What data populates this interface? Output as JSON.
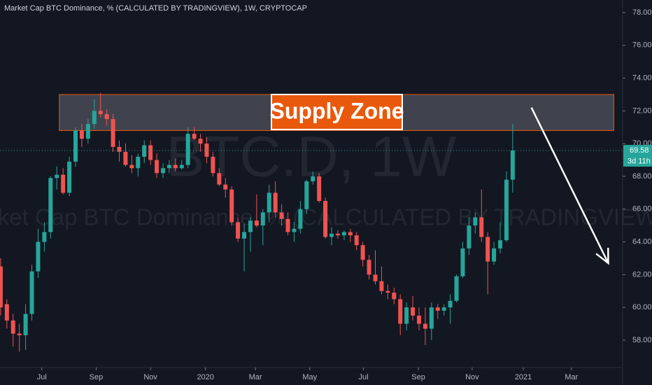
{
  "chart_data": {
    "type": "candlestick",
    "title": "Market Cap BTC Dominance, % (CALCULATED BY TRADINGVIEW), 1W, CRYPTOCAP",
    "watermark": "BTC.D, 1W",
    "watermark_subtitle": "Market Cap BTC Dominance, % (CALCULATED BY TRADINGVIEW)",
    "countdown": "3d 11h",
    "up_color": "#26a69a",
    "down_color": "#ef5350",
    "x": [
      0,
      1,
      2,
      3,
      4,
      5,
      6,
      7,
      8,
      9,
      10,
      11,
      12,
      13,
      14,
      15,
      16,
      17,
      18,
      19,
      20,
      21,
      22,
      23,
      24,
      25,
      26,
      27,
      28,
      29,
      30,
      31,
      32,
      33,
      34,
      35,
      36,
      37,
      38,
      39,
      40,
      41,
      42,
      43,
      44,
      45,
      46,
      47,
      48,
      49,
      50,
      51,
      52,
      53,
      54,
      55,
      56,
      57,
      58,
      59,
      60,
      61,
      62,
      63,
      64,
      65,
      66,
      67,
      68,
      69,
      70,
      71,
      72,
      73,
      74,
      75,
      76,
      77,
      78,
      79,
      80,
      81,
      82
    ],
    "open": [
      62.5,
      60.2,
      59.2,
      58.4,
      58.3,
      59.6,
      62.2,
      64.0,
      64.6,
      67.9,
      68.1,
      67.0,
      68.9,
      70.8,
      70.3,
      71.2,
      72.0,
      71.8,
      71.5,
      69.8,
      69.5,
      68.7,
      68.5,
      69.2,
      69.9,
      69.0,
      68.2,
      68.5,
      68.7,
      68.5,
      68.7,
      70.6,
      70.3,
      70.0,
      69.2,
      68.2,
      67.5,
      67.2,
      65.2,
      64.2,
      64.6,
      65.3,
      65.0,
      65.8,
      67.0,
      65.8,
      65.4,
      64.6,
      64.8,
      66.0,
      67.7,
      68.0,
      66.5,
      64.3,
      64.5,
      64.4,
      64.6,
      64.4,
      63.8,
      62.9,
      62.0,
      61.6,
      61.0,
      60.9,
      60.5,
      59.0,
      60.0,
      59.5,
      59.0,
      58.7,
      60.0,
      59.8,
      60.0,
      60.4,
      61.9,
      63.6,
      65.0,
      65.5,
      64.3,
      62.8,
      63.6,
      64.1,
      67.8
    ],
    "high": [
      63.0,
      60.5,
      59.6,
      59.0,
      60.2,
      62.6,
      64.8,
      65.2,
      68.0,
      68.6,
      68.5,
      69.2,
      71.0,
      71.2,
      71.5,
      72.7,
      73.1,
      72.1,
      71.8,
      70.2,
      70.0,
      69.3,
      69.4,
      70.2,
      70.2,
      69.4,
      68.8,
      69.0,
      69.1,
      69.0,
      71.0,
      71.0,
      70.6,
      70.4,
      69.5,
      68.5,
      67.9,
      67.4,
      65.5,
      65.1,
      65.5,
      66.9,
      66.0,
      67.5,
      67.7,
      66.3,
      65.8,
      65.2,
      66.5,
      67.8,
      68.3,
      68.2,
      66.7,
      64.9,
      64.7,
      64.7,
      64.8,
      64.6,
      64.0,
      63.2,
      63.5,
      62.5,
      61.4,
      61.2,
      60.8,
      60.3,
      60.7,
      60.0,
      60.0,
      60.3,
      60.2,
      60.2,
      60.8,
      62.0,
      64.0,
      65.5,
      65.8,
      67.2,
      64.6,
      64.0,
      65.2,
      68.3,
      71.2
    ],
    "low": [
      59.5,
      58.7,
      57.6,
      57.3,
      57.4,
      59.2,
      61.8,
      63.4,
      64.2,
      67.2,
      66.9,
      66.8,
      68.6,
      69.8,
      70.0,
      70.9,
      71.6,
      71.1,
      69.5,
      68.9,
      68.6,
      68.2,
      68.0,
      68.8,
      68.7,
      67.9,
      67.9,
      68.2,
      68.3,
      68.4,
      68.5,
      70.2,
      69.5,
      68.8,
      68.0,
      67.4,
      66.7,
      65.0,
      64.0,
      62.2,
      63.4,
      64.9,
      63.8,
      65.2,
      65.5,
      65.0,
      64.4,
      64.0,
      64.5,
      65.7,
      67.5,
      66.4,
      64.2,
      63.8,
      64.2,
      64.1,
      64.0,
      63.5,
      62.5,
      61.7,
      61.4,
      60.8,
      60.5,
      60.2,
      58.3,
      58.6,
      59.2,
      58.6,
      57.7,
      58.0,
      59.3,
      59.5,
      59.0,
      60.3,
      61.8,
      63.2,
      64.5,
      64.0,
      60.8,
      62.6,
      63.3,
      64.0,
      67.0
    ],
    "close": [
      60.0,
      59.2,
      58.4,
      58.3,
      59.6,
      62.2,
      64.0,
      64.6,
      67.9,
      68.1,
      67.0,
      68.9,
      70.8,
      70.3,
      71.2,
      72.0,
      71.8,
      71.5,
      69.8,
      69.5,
      68.7,
      68.5,
      69.2,
      69.9,
      69.0,
      68.2,
      68.5,
      68.7,
      68.5,
      68.7,
      70.6,
      70.3,
      70.0,
      69.2,
      68.2,
      67.5,
      67.2,
      65.2,
      64.2,
      64.6,
      65.3,
      65.0,
      65.8,
      67.0,
      65.8,
      65.4,
      64.6,
      64.8,
      66.0,
      67.7,
      68.0,
      66.5,
      64.3,
      64.5,
      64.4,
      64.6,
      64.4,
      63.8,
      62.9,
      62.0,
      61.6,
      61.0,
      60.9,
      60.5,
      59.0,
      60.0,
      59.5,
      59.0,
      58.7,
      60.0,
      59.8,
      60.0,
      60.4,
      61.9,
      63.6,
      65.0,
      65.5,
      64.3,
      62.8,
      63.6,
      64.1,
      67.8,
      69.58
    ],
    "xlim": [
      -0.1,
      99.6
    ],
    "ylim": [
      56.33,
      78.77
    ],
    "xticks": [
      {
        "value": 6.6,
        "label": "Jul"
      },
      {
        "value": 15.3,
        "label": "Sep"
      },
      {
        "value": 24.0,
        "label": "Nov"
      },
      {
        "value": 32.8,
        "label": "2020"
      },
      {
        "value": 40.8,
        "label": "Mar"
      },
      {
        "value": 49.5,
        "label": "May"
      },
      {
        "value": 58.1,
        "label": "Jul"
      },
      {
        "value": 66.9,
        "label": "Sep"
      },
      {
        "value": 75.5,
        "label": "Nov"
      },
      {
        "value": 83.7,
        "label": "2021"
      },
      {
        "value": 91.4,
        "label": "Mar"
      }
    ],
    "yticks": [
      {
        "value": 58,
        "label": "58.00"
      },
      {
        "value": 60,
        "label": "60.00"
      },
      {
        "value": 62,
        "label": "62.00"
      },
      {
        "value": 64,
        "label": "64.00"
      },
      {
        "value": 66,
        "label": "66.00"
      },
      {
        "value": 68,
        "label": "68.00"
      },
      {
        "value": 70,
        "label": "70.00"
      },
      {
        "value": 72,
        "label": "72.00"
      },
      {
        "value": 74,
        "label": "74.00"
      },
      {
        "value": 76,
        "label": "76.00"
      },
      {
        "value": 78,
        "label": "78.00"
      }
    ],
    "zone": {
      "label": "Supply Zone",
      "x": [
        9.4,
        98.2
      ],
      "y": [
        70.8,
        73.0
      ],
      "color": "#e8590c"
    },
    "arrow": {
      "x": [
        85.0,
        97.3
      ],
      "y": [
        72.2,
        62.7
      ],
      "color": "#ffffff"
    }
  }
}
